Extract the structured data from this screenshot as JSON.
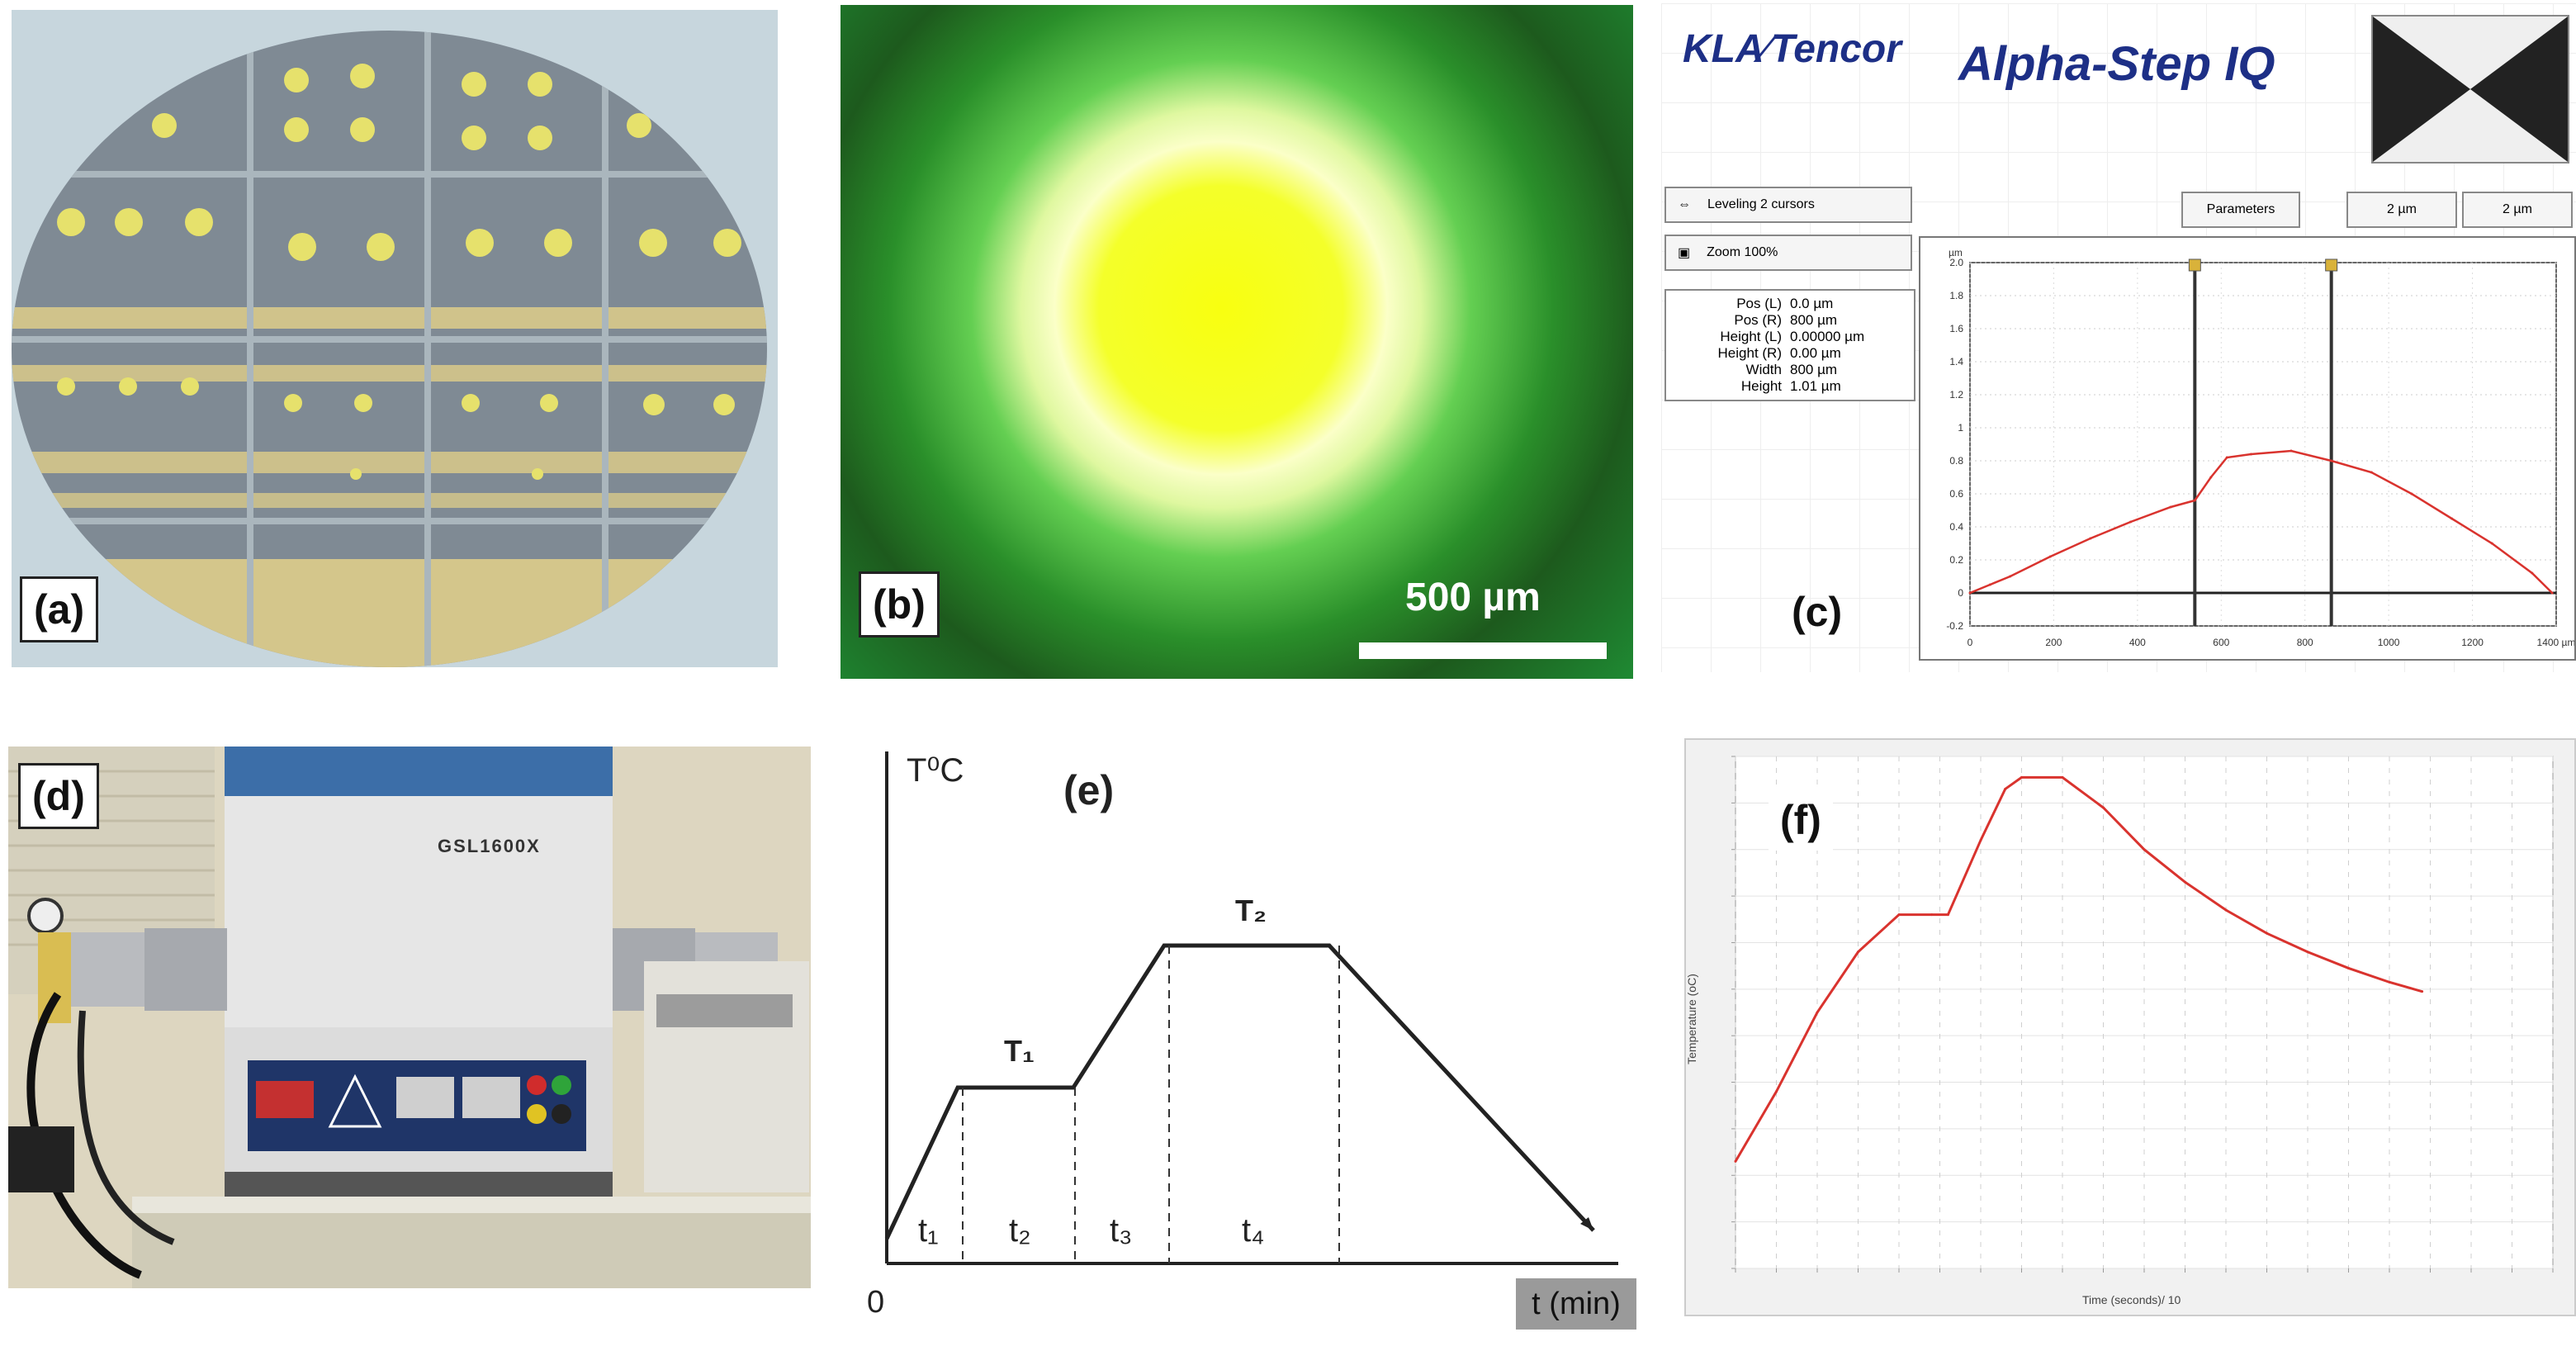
{
  "panels": {
    "a": {
      "label": "(a)"
    },
    "b": {
      "label": "(b)",
      "scale_bar": "500 µm"
    },
    "c": {
      "label": "(c)",
      "brand": "KLA Tencor",
      "brand_left": "KLA",
      "brand_right": "Tencor",
      "product": "Alpha-Step IQ",
      "buttons": [
        "Leveling 2 cursors",
        "Zoom 100%",
        "Parameters",
        "2 µm",
        "2 µm"
      ],
      "params": [
        {
          "label": "Pos (L)",
          "value": "0.0 µm"
        },
        {
          "label": "Pos (R)",
          "value": "800 µm"
        },
        {
          "label": "Height (L)",
          "value": "0.00000 µm"
        },
        {
          "label": "Height (R)",
          "value": "0.00 µm"
        },
        {
          "label": "Width",
          "value": "800 µm"
        },
        {
          "label": "Height",
          "value": "1.01 µm"
        }
      ],
      "y_unit": "µm",
      "y_ticks": [
        "2.0",
        "1.8",
        "1.6",
        "1.4",
        "1.2",
        "1",
        "0.8",
        "0.6",
        "0.4",
        "0.2",
        "0",
        "-0.2"
      ],
      "x_ticks": [
        "0",
        "200",
        "400",
        "600",
        "800",
        "1000",
        "1200",
        "1400 µm"
      ]
    },
    "d": {
      "label": "(d)",
      "model": "GSL1600X"
    },
    "e": {
      "label": "(e)",
      "y_axis": "T⁰C",
      "x_axis": "t (min)",
      "origin": "0",
      "levels": [
        "T₁",
        "T₂"
      ],
      "intervals": [
        "t₁",
        "t₂",
        "t₃",
        "t₄"
      ]
    },
    "f": {
      "label": "(f)",
      "ylabel": "Temperature (oC)",
      "xlabel": "Time (seconds)/ 10"
    }
  },
  "colors": {
    "profile_line": "#d9332e",
    "temp_line": "#d9332e",
    "wafer_gold": "#e6e16c",
    "alpha_blue": "#1d2f86"
  },
  "chart_data": [
    {
      "type": "line",
      "title": "",
      "ylabel": "µm",
      "xlabel": "",
      "x": [
        0,
        50,
        100,
        200,
        300,
        400,
        500,
        560,
        600,
        640,
        700,
        800,
        900,
        1000,
        1100,
        1200,
        1300,
        1400,
        1450
      ],
      "y": [
        0,
        0.05,
        0.1,
        0.22,
        0.33,
        0.43,
        0.52,
        0.56,
        0.7,
        0.82,
        0.84,
        0.86,
        0.8,
        0.73,
        0.6,
        0.45,
        0.3,
        0.12,
        0.0
      ],
      "xlim": [
        0,
        1460
      ],
      "ylim": [
        -0.2,
        2.0
      ]
    },
    {
      "type": "line",
      "title": "",
      "ylabel": "Temperature (oC)",
      "xlabel": "Time (seconds)/ 10",
      "x": [
        0,
        100,
        200,
        300,
        400,
        480,
        520,
        600,
        660,
        700,
        800,
        900,
        1000,
        1100,
        1200,
        1300,
        1400,
        1500,
        1600,
        1680
      ],
      "y": [
        30,
        180,
        350,
        480,
        560,
        560,
        560,
        720,
        830,
        855,
        855,
        790,
        700,
        630,
        570,
        520,
        480,
        445,
        415,
        395
      ],
      "xlim": [
        0,
        2000
      ],
      "ylim": [
        -200,
        900
      ]
    }
  ]
}
